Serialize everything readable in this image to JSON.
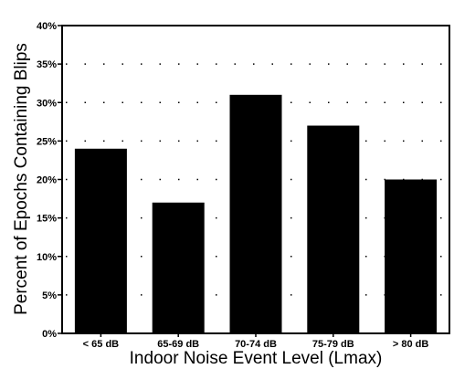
{
  "chart_data": {
    "type": "bar",
    "title": "",
    "xlabel": "Indoor Noise Event Level (Lmax)",
    "ylabel": "Percent of Epochs Containing Blips",
    "categories": [
      "< 65 dB",
      "65-69 dB",
      "70-74 dB",
      "75-79 dB",
      "> 80 dB"
    ],
    "values": [
      24,
      17,
      31,
      27,
      20
    ],
    "ylim": [
      0,
      40
    ],
    "yticks": [
      "0%",
      "5%",
      "10%",
      "15%",
      "20%",
      "25%",
      "30%",
      "35%",
      "40%"
    ],
    "grid": "dotted horizontal",
    "legend": "none",
    "bar_color": "#000000"
  }
}
